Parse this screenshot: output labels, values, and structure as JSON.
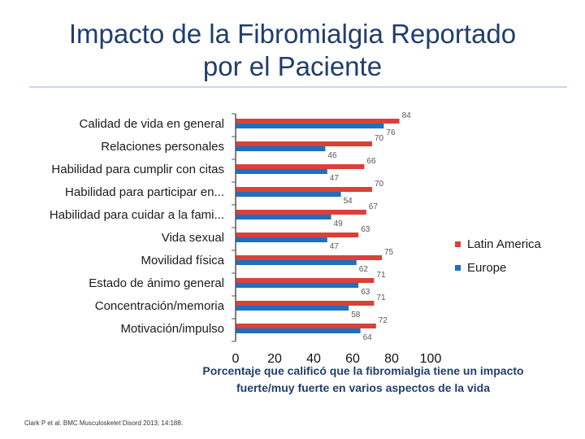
{
  "title_line1": "Impacto de la Fibromialgia Reportado",
  "title_line2": "por el Paciente",
  "citation": "Clark P et al. BMC Musculoskelet Disord 2013; 14:188.",
  "colors": {
    "latin_america": "#d9413a",
    "europe": "#1f6fc1",
    "axis": "#555555",
    "title": "#1f3e6e"
  },
  "chart_data": {
    "type": "bar",
    "orientation": "horizontal",
    "title": "Impacto de la Fibromialgia Reportado por el Paciente",
    "categories": [
      "Calidad de vida en general",
      "Relaciones personales",
      "Habilidad para cumplir con citas",
      "Habilidad para participar en...",
      "Habilidad para cuidar a la fami...",
      "Vida sexual",
      "Movilidad física",
      "Estado de ánimo general",
      "Concentración/memoria",
      "Motivación/impulso"
    ],
    "series": [
      {
        "name": "Latin America",
        "values": [
          84,
          70,
          66,
          70,
          67,
          63,
          75,
          71,
          71,
          72
        ]
      },
      {
        "name": "Europe",
        "values": [
          76,
          46,
          47,
          54,
          49,
          47,
          62,
          63,
          58,
          64
        ]
      }
    ],
    "xlim": [
      0,
      100
    ],
    "xticks": [
      "0",
      "20",
      "40",
      "60",
      "80",
      "100"
    ],
    "xlabel_line1": "Porcentaje que calificó que la fibromialgia tiene un impacto",
    "xlabel_line2": "fuerte/muy fuerte en varios aspectos de la vida",
    "legend_position": "right"
  }
}
